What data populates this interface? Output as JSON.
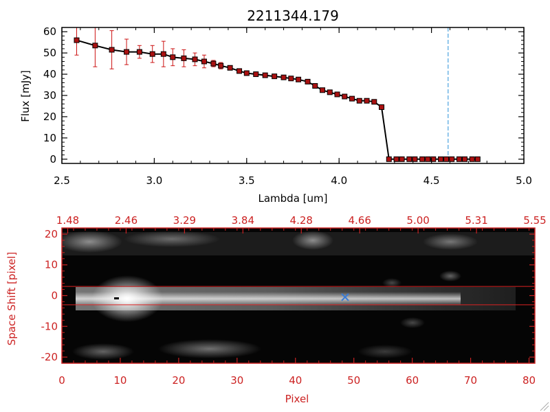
{
  "colors": {
    "axis_black": "#000000",
    "error_red": "#cc1111",
    "marker_red": "#aa1111",
    "axis_red": "#cc2222",
    "marker_line": "#4aa3df",
    "band_red": "#dd2222",
    "source_marker": "#3a7bd5"
  },
  "chart_data": [
    {
      "type": "line",
      "title": "2211344.179",
      "xlabel": "Lambda [um]",
      "ylabel": "Flux [mJy]",
      "xlim": [
        2.5,
        5.0
      ],
      "ylim": [
        -2,
        62
      ],
      "xticks": [
        2.5,
        3.0,
        3.5,
        4.0,
        4.5,
        5.0
      ],
      "xtick_labels": [
        "2.5",
        "3.0",
        "3.5",
        "4.0",
        "4.5",
        "5.0"
      ],
      "yticks": [
        0,
        10,
        20,
        30,
        40,
        50,
        60
      ],
      "ytick_labels": [
        "0",
        "10",
        "20",
        "30",
        "40",
        "50",
        "60"
      ],
      "grid": false,
      "vertical_marker_x": 4.59,
      "series": [
        {
          "x": [
            2.58,
            2.68,
            2.77,
            2.85,
            2.92,
            2.99,
            3.05,
            3.1,
            3.16,
            3.22,
            3.27,
            3.32,
            3.36,
            3.41,
            3.46,
            3.5,
            3.55,
            3.6,
            3.65,
            3.7,
            3.74,
            3.78,
            3.83,
            3.87,
            3.91,
            3.95,
            3.99,
            4.03,
            4.07,
            4.11,
            4.15,
            4.19,
            4.23,
            4.27,
            4.31,
            4.34,
            4.38,
            4.41,
            4.45,
            4.48,
            4.51,
            4.55,
            4.58,
            4.61,
            4.65,
            4.68,
            4.72,
            4.75
          ],
          "y": [
            56,
            53.5,
            51.5,
            50.5,
            50.5,
            49.5,
            49.5,
            48,
            47.5,
            47,
            46,
            45,
            44,
            43,
            41.5,
            40.5,
            40,
            39.5,
            39,
            38.5,
            38,
            37.5,
            36.5,
            34.5,
            32.5,
            31.5,
            30.5,
            29.5,
            28.5,
            27.5,
            27.5,
            27,
            24.5,
            0,
            0,
            0,
            0,
            0,
            0,
            0,
            0,
            0,
            0,
            0,
            0,
            0,
            0,
            0
          ],
          "yerr": [
            7,
            10,
            9,
            6,
            3,
            4,
            6,
            4,
            4,
            3,
            3,
            1.5,
            1.5,
            1,
            1,
            1,
            1,
            1,
            1,
            1,
            1,
            1,
            1,
            1,
            1,
            1,
            1,
            1,
            1,
            1,
            1,
            1,
            1,
            0,
            0,
            0,
            0,
            0,
            0,
            0,
            0,
            0,
            0,
            0,
            0,
            0,
            0,
            0
          ]
        }
      ]
    },
    {
      "type": "heatmap",
      "xlabel": "Pixel",
      "ylabel": "Space Shift [pixel]",
      "xlim": [
        0,
        81
      ],
      "ylim": [
        -22,
        22
      ],
      "xticks": [
        0,
        10,
        20,
        30,
        40,
        50,
        60,
        70,
        80
      ],
      "xtick_labels": [
        "0",
        "10",
        "20",
        "30",
        "40",
        "50",
        "60",
        "70",
        "80"
      ],
      "top_ticks": [
        1,
        11,
        21,
        31,
        41,
        51,
        61,
        71,
        81
      ],
      "top_tick_labels": [
        "1.48",
        "2.46",
        "3.29",
        "3.84",
        "4.28",
        "4.66",
        "5.00",
        "5.31",
        "5.55"
      ],
      "yticks": [
        -20,
        -10,
        0,
        10,
        20
      ],
      "ytick_labels": [
        "-20",
        "-10",
        "0",
        "10",
        "20"
      ],
      "band_y": [
        -3,
        3
      ],
      "source_marker": [
        48.5,
        -0.5
      ],
      "grid": false
    }
  ]
}
